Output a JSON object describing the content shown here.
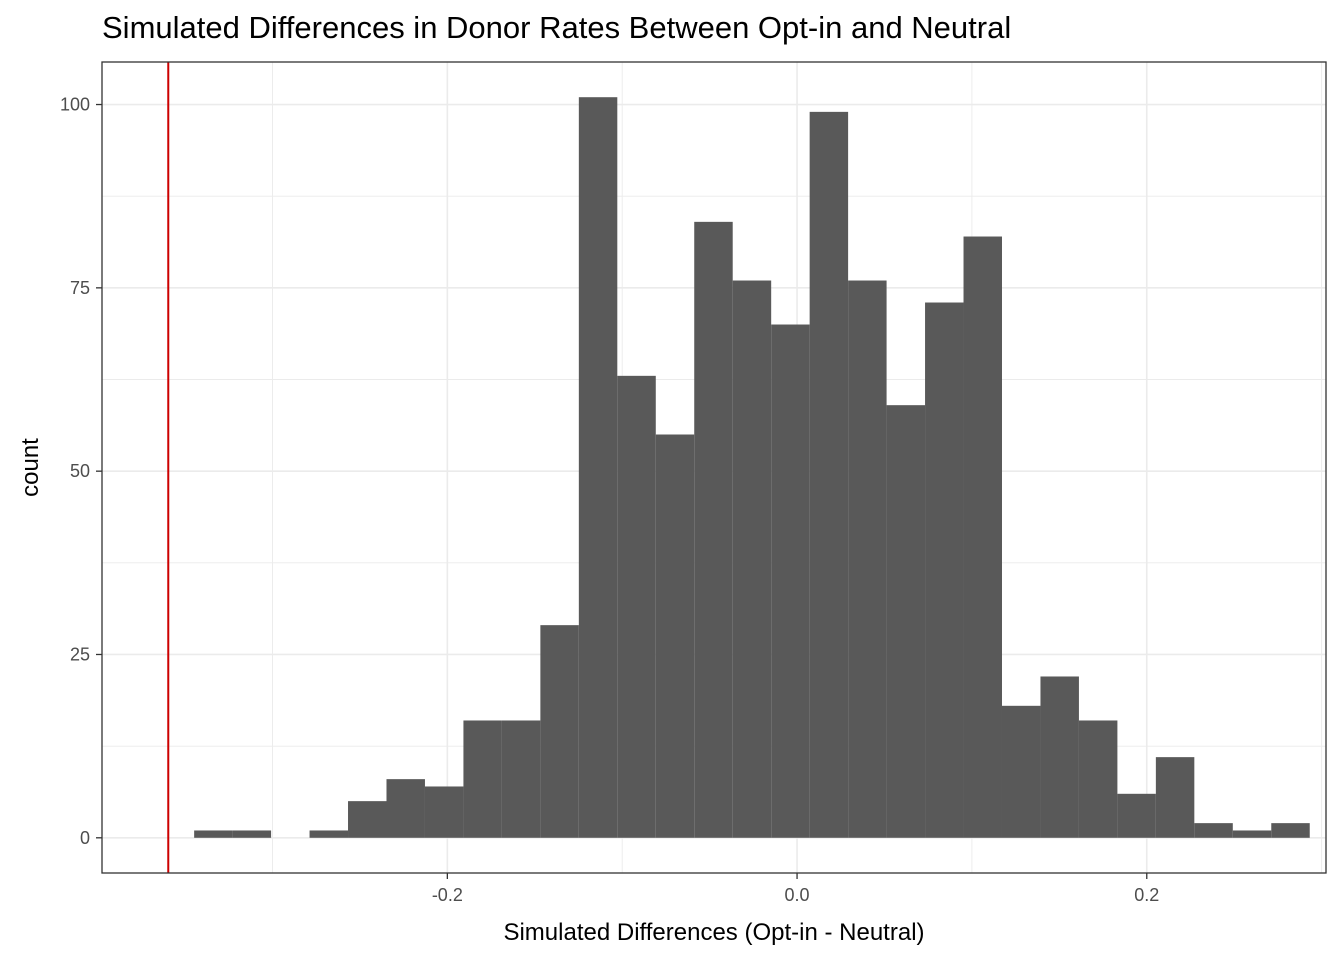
{
  "chart_data": {
    "type": "histogram",
    "title": "Simulated Differences in Donor Rates Between Opt-in and Neutral",
    "xlabel": "Simulated Differences (Opt-in - Neutral)",
    "ylabel": "count",
    "xlim": [
      -0.3975,
      0.3025
    ],
    "ylim": [
      -4.8,
      105.8
    ],
    "x_ticks": [
      -0.2,
      0.0,
      0.2
    ],
    "x_tick_labels": [
      "-0.2",
      "0.0",
      "0.2"
    ],
    "y_ticks": [
      0,
      25,
      50,
      75,
      100
    ],
    "y_tick_labels": [
      "0",
      "25",
      "50",
      "75",
      "100"
    ],
    "bin_width": 0.022,
    "bins": [
      {
        "x0": -0.3448,
        "x1": -0.3228,
        "count": 1
      },
      {
        "x0": -0.3228,
        "x1": -0.3008,
        "count": 1
      },
      {
        "x0": -0.3008,
        "x1": -0.2788,
        "count": 0
      },
      {
        "x0": -0.2788,
        "x1": -0.2568,
        "count": 1
      },
      {
        "x0": -0.2568,
        "x1": -0.2348,
        "count": 5
      },
      {
        "x0": -0.2348,
        "x1": -0.2128,
        "count": 8
      },
      {
        "x0": -0.2128,
        "x1": -0.1908,
        "count": 7
      },
      {
        "x0": -0.1908,
        "x1": -0.1688,
        "count": 16
      },
      {
        "x0": -0.1688,
        "x1": -0.1468,
        "count": 16
      },
      {
        "x0": -0.1468,
        "x1": -0.1248,
        "count": 29
      },
      {
        "x0": -0.1248,
        "x1": -0.1028,
        "count": 101
      },
      {
        "x0": -0.1028,
        "x1": -0.0808,
        "count": 63
      },
      {
        "x0": -0.0808,
        "x1": -0.0588,
        "count": 55
      },
      {
        "x0": -0.0588,
        "x1": -0.0368,
        "count": 84
      },
      {
        "x0": -0.0368,
        "x1": -0.0148,
        "count": 76
      },
      {
        "x0": -0.0148,
        "x1": 0.0072,
        "count": 70
      },
      {
        "x0": 0.0072,
        "x1": 0.0292,
        "count": 99
      },
      {
        "x0": 0.0292,
        "x1": 0.0512,
        "count": 76
      },
      {
        "x0": 0.0512,
        "x1": 0.0732,
        "count": 59
      },
      {
        "x0": 0.0732,
        "x1": 0.0952,
        "count": 73
      },
      {
        "x0": 0.0952,
        "x1": 0.1172,
        "count": 82
      },
      {
        "x0": 0.1172,
        "x1": 0.1392,
        "count": 18
      },
      {
        "x0": 0.1392,
        "x1": 0.1612,
        "count": 22
      },
      {
        "x0": 0.1612,
        "x1": 0.1832,
        "count": 16
      },
      {
        "x0": 0.1832,
        "x1": 0.2052,
        "count": 6
      },
      {
        "x0": 0.2052,
        "x1": 0.2272,
        "count": 11
      },
      {
        "x0": 0.2272,
        "x1": 0.2492,
        "count": 2
      },
      {
        "x0": 0.2492,
        "x1": 0.2712,
        "count": 1
      },
      {
        "x0": 0.2712,
        "x1": 0.2932,
        "count": 2
      }
    ],
    "reference_line": {
      "x": -0.3596
    },
    "grid": true,
    "legend": "none",
    "colors": {
      "bar": "#595959",
      "reference_line": "#cc0000",
      "grid": "#ebebeb",
      "panel_border": "#333333",
      "tick_text": "#4d4d4d"
    }
  }
}
